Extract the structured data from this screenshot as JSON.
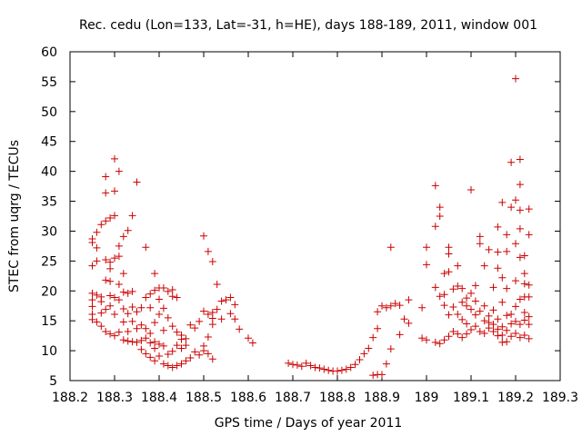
{
  "chart_data": {
    "type": "scatter",
    "title": "Rec. cedu (Lon=133, Lat=-31, h=HE), days 188-189, 2011, window 001",
    "xlabel": "GPS time / Days of year 2011",
    "ylabel": "STEC from uqrg / TECUs",
    "xlim": [
      188.2,
      189.3
    ],
    "ylim": [
      5,
      60
    ],
    "xticks": [
      188.2,
      188.3,
      188.4,
      188.5,
      188.6,
      188.7,
      188.8,
      188.9,
      189.0,
      189.1,
      189.2,
      189.3
    ],
    "xtick_labels": [
      "188.2",
      "188.3",
      "188.4",
      "188.5",
      "188.6",
      "188.7",
      "188.8",
      "188.9",
      "189",
      "189.1",
      "189.2",
      "189.3"
    ],
    "yticks": [
      5,
      10,
      15,
      20,
      25,
      30,
      35,
      40,
      45,
      50,
      55,
      60
    ],
    "ytick_labels": [
      "5",
      "10",
      "15",
      "20",
      "25",
      "30",
      "35",
      "40",
      "45",
      "50",
      "55",
      "60"
    ],
    "grid": false,
    "marker": "+",
    "color": "#cc0000",
    "series": [
      {
        "points": [
          [
            188.25,
            15.2
          ],
          [
            188.25,
            16.1
          ],
          [
            188.25,
            17.4
          ],
          [
            188.25,
            18.5
          ],
          [
            188.25,
            19.6
          ],
          [
            188.25,
            24.2
          ],
          [
            188.25,
            28.1
          ],
          [
            188.25,
            28.7
          ],
          [
            188.26,
            14.8
          ],
          [
            188.26,
            19.3
          ],
          [
            188.26,
            25.0
          ],
          [
            188.26,
            27.2
          ],
          [
            188.26,
            29.8
          ],
          [
            188.27,
            14.1
          ],
          [
            188.27,
            16.3
          ],
          [
            188.27,
            18.2
          ],
          [
            188.27,
            19.0
          ],
          [
            188.27,
            31.1
          ],
          [
            188.28,
            13.2
          ],
          [
            188.28,
            16.9
          ],
          [
            188.28,
            21.8
          ],
          [
            188.28,
            25.2
          ],
          [
            188.28,
            31.7
          ],
          [
            188.28,
            36.4
          ],
          [
            188.28,
            39.1
          ],
          [
            188.29,
            12.8
          ],
          [
            188.29,
            17.5
          ],
          [
            188.29,
            19.2
          ],
          [
            188.29,
            21.6
          ],
          [
            188.29,
            23.7
          ],
          [
            188.29,
            24.8
          ],
          [
            188.29,
            32.2
          ],
          [
            188.3,
            12.5
          ],
          [
            188.3,
            16.1
          ],
          [
            188.3,
            18.9
          ],
          [
            188.3,
            25.5
          ],
          [
            188.3,
            32.6
          ],
          [
            188.3,
            36.7
          ],
          [
            188.3,
            42.1
          ],
          [
            188.31,
            13.1
          ],
          [
            188.31,
            18.5
          ],
          [
            188.31,
            21.1
          ],
          [
            188.31,
            25.8
          ],
          [
            188.31,
            27.5
          ],
          [
            188.31,
            40.0
          ],
          [
            188.32,
            11.8
          ],
          [
            188.32,
            14.8
          ],
          [
            188.32,
            17.0
          ],
          [
            188.32,
            19.8
          ],
          [
            188.32,
            22.9
          ],
          [
            188.32,
            29.1
          ],
          [
            188.33,
            11.6
          ],
          [
            188.33,
            13.2
          ],
          [
            188.33,
            16.2
          ],
          [
            188.33,
            19.6
          ],
          [
            188.33,
            30.1
          ],
          [
            188.34,
            11.5
          ],
          [
            188.34,
            14.9
          ],
          [
            188.34,
            17.3
          ],
          [
            188.34,
            19.9
          ],
          [
            188.34,
            32.6
          ],
          [
            188.35,
            11.4
          ],
          [
            188.35,
            13.7
          ],
          [
            188.35,
            16.5
          ],
          [
            188.35,
            38.2
          ],
          [
            188.36,
            10.2
          ],
          [
            188.36,
            11.7
          ],
          [
            188.36,
            14.3
          ],
          [
            188.36,
            17.2
          ],
          [
            188.37,
            9.5
          ],
          [
            188.37,
            12.1
          ],
          [
            188.37,
            13.7
          ],
          [
            188.37,
            18.9
          ],
          [
            188.37,
            27.3
          ],
          [
            188.38,
            8.9
          ],
          [
            188.38,
            11.3
          ],
          [
            188.38,
            12.9
          ],
          [
            188.38,
            17.2
          ],
          [
            188.38,
            19.5
          ],
          [
            188.39,
            8.3
          ],
          [
            188.39,
            10.4
          ],
          [
            188.39,
            11.5
          ],
          [
            188.39,
            14.7
          ],
          [
            188.39,
            22.9
          ],
          [
            188.39,
            20.1
          ],
          [
            188.4,
            9.1
          ],
          [
            188.4,
            11.1
          ],
          [
            188.4,
            16.1
          ],
          [
            188.4,
            18.6
          ],
          [
            188.4,
            20.5
          ],
          [
            188.41,
            7.8
          ],
          [
            188.41,
            10.8
          ],
          [
            188.41,
            13.4
          ],
          [
            188.41,
            17.1
          ],
          [
            188.41,
            20.5
          ],
          [
            188.42,
            7.5
          ],
          [
            188.42,
            9.4
          ],
          [
            188.42,
            15.5
          ],
          [
            188.42,
            19.9
          ],
          [
            188.43,
            7.2
          ],
          [
            188.43,
            9.9
          ],
          [
            188.43,
            14.1
          ],
          [
            188.43,
            19.1
          ],
          [
            188.43,
            20.2
          ],
          [
            188.44,
            7.5
          ],
          [
            188.44,
            10.9
          ],
          [
            188.44,
            13.1
          ],
          [
            188.44,
            18.9
          ],
          [
            188.45,
            7.8
          ],
          [
            188.45,
            10.4
          ],
          [
            188.45,
            11.9
          ],
          [
            188.45,
            12.6
          ],
          [
            188.46,
            8.3
          ],
          [
            188.46,
            10.9
          ],
          [
            188.46,
            12.0
          ],
          [
            188.47,
            8.8
          ],
          [
            188.47,
            14.3
          ],
          [
            188.48,
            9.8
          ],
          [
            188.48,
            13.8
          ],
          [
            188.49,
            9.3
          ],
          [
            188.49,
            14.9
          ],
          [
            188.5,
            10.0
          ],
          [
            188.5,
            10.8
          ],
          [
            188.5,
            16.6
          ],
          [
            188.5,
            29.2
          ],
          [
            188.51,
            9.5
          ],
          [
            188.51,
            12.3
          ],
          [
            188.51,
            16.1
          ],
          [
            188.51,
            26.6
          ],
          [
            188.52,
            8.6
          ],
          [
            188.52,
            14.4
          ],
          [
            188.52,
            15.4
          ],
          [
            188.52,
            16.4
          ],
          [
            188.52,
            24.9
          ],
          [
            188.53,
            16.9
          ],
          [
            188.53,
            21.1
          ],
          [
            188.54,
            15.3
          ],
          [
            188.54,
            18.3
          ],
          [
            188.55,
            18.5
          ],
          [
            188.56,
            16.2
          ],
          [
            188.56,
            18.9
          ],
          [
            188.57,
            15.3
          ],
          [
            188.57,
            17.7
          ],
          [
            188.58,
            13.6
          ],
          [
            188.6,
            12.1
          ],
          [
            188.61,
            11.3
          ],
          [
            188.69,
            7.9
          ],
          [
            188.7,
            7.7
          ],
          [
            188.71,
            7.6
          ],
          [
            188.72,
            7.4
          ],
          [
            188.73,
            7.9
          ],
          [
            188.74,
            7.5
          ],
          [
            188.75,
            7.2
          ],
          [
            188.76,
            7.1
          ],
          [
            188.77,
            6.9
          ],
          [
            188.78,
            6.7
          ],
          [
            188.79,
            6.6
          ],
          [
            188.8,
            6.6
          ],
          [
            188.81,
            6.7
          ],
          [
            188.82,
            6.9
          ],
          [
            188.83,
            7.2
          ],
          [
            188.84,
            7.7
          ],
          [
            188.85,
            8.5
          ],
          [
            188.86,
            9.5
          ],
          [
            188.87,
            10.4
          ],
          [
            188.88,
            5.9
          ],
          [
            188.88,
            12.2
          ],
          [
            188.89,
            6.0
          ],
          [
            188.89,
            13.7
          ],
          [
            188.89,
            16.5
          ],
          [
            188.9,
            6.0
          ],
          [
            188.9,
            17.5
          ],
          [
            188.91,
            7.8
          ],
          [
            188.91,
            17.2
          ],
          [
            188.92,
            10.3
          ],
          [
            188.92,
            17.5
          ],
          [
            188.92,
            27.3
          ],
          [
            188.93,
            17.9
          ],
          [
            188.94,
            12.7
          ],
          [
            188.94,
            17.6
          ],
          [
            188.95,
            15.3
          ],
          [
            188.96,
            14.6
          ],
          [
            188.96,
            18.5
          ],
          [
            188.99,
            12.1
          ],
          [
            188.99,
            17.2
          ],
          [
            189.0,
            11.8
          ],
          [
            189.0,
            24.4
          ],
          [
            189.0,
            27.3
          ],
          [
            189.02,
            11.4
          ],
          [
            189.02,
            20.6
          ],
          [
            189.02,
            30.8
          ],
          [
            189.02,
            37.6
          ],
          [
            189.03,
            11.2
          ],
          [
            189.03,
            19.1
          ],
          [
            189.03,
            32.5
          ],
          [
            189.03,
            34.0
          ],
          [
            189.04,
            11.8
          ],
          [
            189.04,
            17.6
          ],
          [
            189.04,
            19.4
          ],
          [
            189.04,
            22.9
          ],
          [
            189.05,
            12.4
          ],
          [
            189.05,
            16.0
          ],
          [
            189.05,
            26.2
          ],
          [
            189.05,
            27.3
          ],
          [
            189.05,
            23.2
          ],
          [
            189.06,
            13.2
          ],
          [
            189.06,
            17.3
          ],
          [
            189.06,
            20.3
          ],
          [
            189.07,
            12.8
          ],
          [
            189.07,
            16.1
          ],
          [
            189.07,
            20.8
          ],
          [
            189.07,
            24.2
          ],
          [
            189.08,
            12.2
          ],
          [
            189.08,
            15.2
          ],
          [
            189.08,
            18.1
          ],
          [
            189.08,
            20.4
          ],
          [
            189.09,
            12.8
          ],
          [
            189.09,
            14.5
          ],
          [
            189.09,
            17.5
          ],
          [
            189.09,
            18.8
          ],
          [
            189.1,
            13.5
          ],
          [
            189.1,
            16.9
          ],
          [
            189.1,
            19.6
          ],
          [
            189.1,
            36.9
          ],
          [
            189.11,
            14.1
          ],
          [
            189.11,
            16.0
          ],
          [
            189.11,
            18.3
          ],
          [
            189.11,
            20.9
          ],
          [
            189.12,
            13.2
          ],
          [
            189.12,
            16.6
          ],
          [
            189.12,
            27.9
          ],
          [
            189.12,
            29.1
          ],
          [
            189.13,
            12.9
          ],
          [
            189.13,
            15.0
          ],
          [
            189.13,
            17.5
          ],
          [
            189.13,
            24.2
          ],
          [
            189.14,
            13.8
          ],
          [
            189.14,
            14.7
          ],
          [
            189.14,
            15.8
          ],
          [
            189.14,
            26.9
          ],
          [
            189.15,
            13.2
          ],
          [
            189.15,
            14.4
          ],
          [
            189.15,
            16.8
          ],
          [
            189.15,
            20.6
          ],
          [
            189.16,
            12.5
          ],
          [
            189.16,
            13.6
          ],
          [
            189.16,
            15.3
          ],
          [
            189.16,
            23.8
          ],
          [
            189.16,
            26.5
          ],
          [
            189.16,
            30.7
          ],
          [
            189.17,
            11.4
          ],
          [
            189.17,
            12.6
          ],
          [
            189.17,
            14.0
          ],
          [
            189.17,
            18.1
          ],
          [
            189.17,
            22.2
          ],
          [
            189.17,
            34.8
          ],
          [
            189.18,
            11.5
          ],
          [
            189.18,
            13.4
          ],
          [
            189.18,
            15.9
          ],
          [
            189.18,
            20.4
          ],
          [
            189.18,
            29.4
          ],
          [
            189.18,
            26.6
          ],
          [
            189.19,
            12.4
          ],
          [
            189.19,
            14.5
          ],
          [
            189.19,
            16.1
          ],
          [
            189.19,
            41.5
          ],
          [
            189.19,
            34.0
          ],
          [
            189.2,
            12.9
          ],
          [
            189.2,
            14.9
          ],
          [
            189.2,
            17.4
          ],
          [
            189.2,
            21.7
          ],
          [
            189.2,
            27.9
          ],
          [
            189.2,
            35.2
          ],
          [
            189.2,
            55.5
          ],
          [
            189.21,
            12.2
          ],
          [
            189.21,
            14.4
          ],
          [
            189.21,
            18.6
          ],
          [
            189.21,
            25.6
          ],
          [
            189.21,
            30.4
          ],
          [
            189.21,
            33.5
          ],
          [
            189.21,
            37.8
          ],
          [
            189.21,
            42.0
          ],
          [
            189.22,
            12.6
          ],
          [
            189.22,
            15.1
          ],
          [
            189.22,
            16.4
          ],
          [
            189.22,
            19.0
          ],
          [
            189.22,
            21.2
          ],
          [
            189.22,
            22.9
          ],
          [
            189.22,
            25.9
          ],
          [
            189.23,
            12.0
          ],
          [
            189.23,
            14.4
          ],
          [
            189.23,
            15.7
          ],
          [
            189.23,
            19.0
          ],
          [
            189.23,
            21.0
          ],
          [
            189.23,
            29.4
          ],
          [
            189.23,
            33.7
          ]
        ]
      }
    ]
  }
}
